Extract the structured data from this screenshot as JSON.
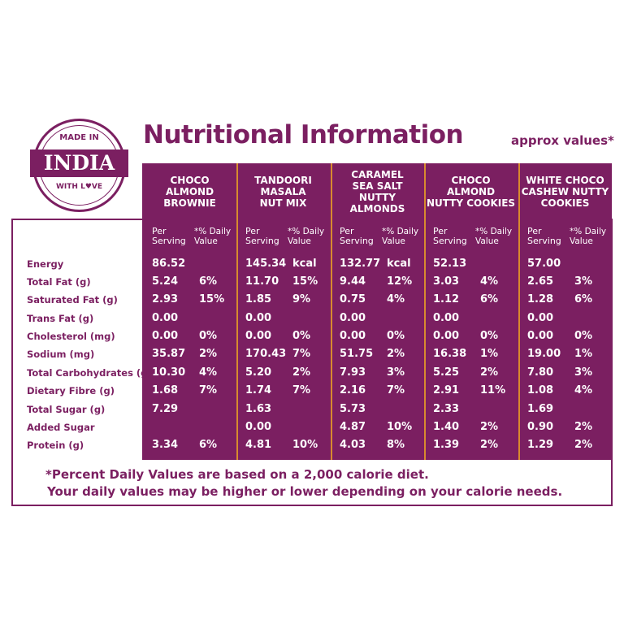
{
  "badge": {
    "top": "MADE IN",
    "main": "INDIA",
    "bottom": "WITH L♥VE"
  },
  "title": "Nutritional Information",
  "approx": "approx values*",
  "products": [
    {
      "name": "CHOCO\nALMOND\nBROWNIE",
      "per_serving": "Per\nServing",
      "dv": "*% Daily\nValue"
    },
    {
      "name": "TANDOORI\nMASALA\nNUT MIX",
      "per_serving": "Per\nServing",
      "dv": "*% Daily\nValue"
    },
    {
      "name": "CARAMEL\nSEA SALT\nNUTTY\nALMONDS",
      "per_serving": "Per\nServing",
      "dv": "*% Daily\nValue"
    },
    {
      "name": "CHOCO\nALMOND\nNUTTY COOKIES",
      "per_serving": "Per\nServing",
      "dv": "*% Daily\nValue"
    },
    {
      "name": "WHITE CHOCO\nCASHEW NUTTY\nCOOKIES",
      "per_serving": "Per\nServing",
      "dv": "*% Daily\nValue"
    }
  ],
  "rows": [
    {
      "label": "Energy",
      "values": [
        [
          "86.52",
          ""
        ],
        [
          "145.34",
          "kcal"
        ],
        [
          "132.77",
          "kcal"
        ],
        [
          "52.13",
          ""
        ],
        [
          "57.00",
          ""
        ]
      ]
    },
    {
      "label": "Total Fat (g)",
      "values": [
        [
          "5.24",
          "6%"
        ],
        [
          "11.70",
          "15%"
        ],
        [
          "9.44",
          "12%"
        ],
        [
          "3.03",
          "4%"
        ],
        [
          "2.65",
          "3%"
        ]
      ]
    },
    {
      "label": "Saturated Fat (g)",
      "values": [
        [
          "2.93",
          "15%"
        ],
        [
          "1.85",
          "9%"
        ],
        [
          "0.75",
          "4%"
        ],
        [
          "1.12",
          "6%"
        ],
        [
          "1.28",
          "6%"
        ]
      ]
    },
    {
      "label": "Trans Fat (g)",
      "values": [
        [
          "0.00",
          ""
        ],
        [
          "0.00",
          ""
        ],
        [
          "0.00",
          ""
        ],
        [
          "0.00",
          ""
        ],
        [
          "0.00",
          ""
        ]
      ]
    },
    {
      "label": "Cholesterol (mg)",
      "values": [
        [
          "0.00",
          "0%"
        ],
        [
          "0.00",
          "0%"
        ],
        [
          "0.00",
          "0%"
        ],
        [
          "0.00",
          "0%"
        ],
        [
          "0.00",
          "0%"
        ]
      ]
    },
    {
      "label": "Sodium (mg)",
      "values": [
        [
          "35.87",
          "2%"
        ],
        [
          "170.43",
          "7%"
        ],
        [
          "51.75",
          "2%"
        ],
        [
          "16.38",
          "1%"
        ],
        [
          "19.00",
          "1%"
        ]
      ]
    },
    {
      "label": "Total Carbohydrates (g)",
      "values": [
        [
          "10.30",
          "4%"
        ],
        [
          "5.20",
          "2%"
        ],
        [
          "7.93",
          "3%"
        ],
        [
          "5.25",
          "2%"
        ],
        [
          "7.80",
          "3%"
        ]
      ]
    },
    {
      "label": "Dietary Fibre (g)",
      "values": [
        [
          "1.68",
          "7%"
        ],
        [
          "1.74",
          "7%"
        ],
        [
          "2.16",
          "7%"
        ],
        [
          "2.91",
          "11%"
        ],
        [
          "1.08",
          "4%"
        ]
      ]
    },
    {
      "label": "Total Sugar (g)",
      "values": [
        [
          "7.29",
          ""
        ],
        [
          "1.63",
          ""
        ],
        [
          "5.73",
          ""
        ],
        [
          "2.33",
          ""
        ],
        [
          "1.69",
          ""
        ]
      ]
    },
    {
      "label": "Added Sugar",
      "values": [
        [
          "",
          ""
        ],
        [
          "0.00",
          ""
        ],
        [
          "4.87",
          "10%"
        ],
        [
          "1.40",
          "2%"
        ],
        [
          "0.90",
          "2%"
        ]
      ]
    },
    {
      "label": "Protein (g)",
      "values": [
        [
          "3.34",
          "6%"
        ],
        [
          "4.81",
          "10%"
        ],
        [
          "4.03",
          "8%"
        ],
        [
          "1.39",
          "2%"
        ],
        [
          "1.29",
          "2%"
        ]
      ]
    }
  ],
  "footer": {
    "line1": "*Percent Daily Values are based on a 2,000 calorie diet.",
    "line2": "Your daily values may be higher or lower depending on your calorie needs."
  },
  "colors": {
    "brand": "#7b1f61",
    "separator": "#d88a2e",
    "text_light": "#ffffff"
  }
}
